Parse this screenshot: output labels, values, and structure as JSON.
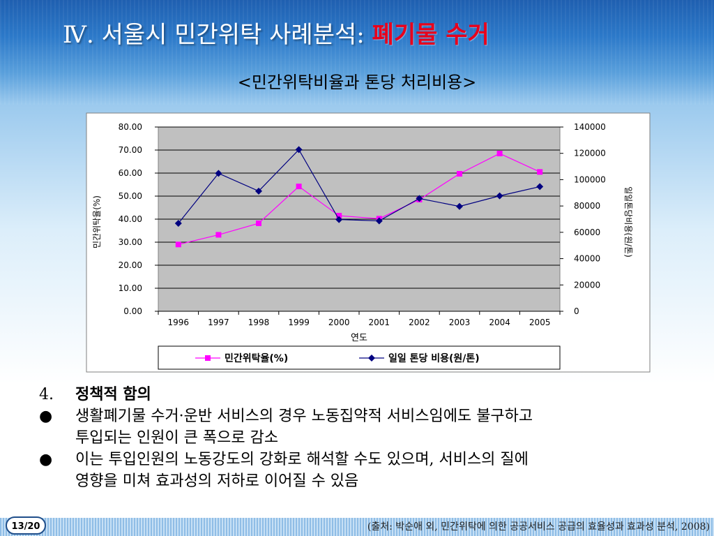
{
  "slide": {
    "title_main": "Ⅳ. 서울시 민간위탁 사례분석: ",
    "title_accent": "폐기물 수거",
    "chart_caption": "<민간위탁비율과 톤당 처리비용>",
    "page": "13/20",
    "source": "(출처: 박순애 외, 민간위탁에 의한 공공서비스 공급의 효율성과 효과성 분석, 2008)",
    "colors": {
      "title": "#ffffff",
      "accent": "#e8001c",
      "banner": "#2c79c9"
    }
  },
  "chart_data": {
    "type": "line",
    "x": [
      "1996",
      "1997",
      "1998",
      "1999",
      "2000",
      "2001",
      "2002",
      "2003",
      "2004",
      "2005"
    ],
    "xlabel": "연도",
    "ylabel_left": "민간위탁율(%)",
    "ylabel_right": "일일톤당비용(원/톤)",
    "ylim_left": [
      0,
      80
    ],
    "ylim_right": [
      0,
      140000
    ],
    "yticks_left": [
      "0.00",
      "10.00",
      "20.00",
      "30.00",
      "40.00",
      "50.00",
      "60.00",
      "70.00",
      "80.00"
    ],
    "yticks_right": [
      "0",
      "20000",
      "40000",
      "60000",
      "80000",
      "100000",
      "120000",
      "140000"
    ],
    "grid": true,
    "legend_position": "bottom",
    "series": [
      {
        "name": "민간위탁율(%)",
        "axis": "left",
        "color": "#ff00ff",
        "marker": "square",
        "values": [
          29,
          33.2,
          38.2,
          54.2,
          41.5,
          40.2,
          48.5,
          59.7,
          68.5,
          60.5
        ]
      },
      {
        "name": "일일 톤당 비용(원/톤)",
        "axis": "right",
        "color": "#000080",
        "marker": "diamond",
        "values": [
          66800,
          104800,
          91300,
          122800,
          69700,
          68700,
          85700,
          79700,
          87700,
          94700
        ]
      }
    ]
  },
  "content": {
    "policy": {
      "number": "4.",
      "title": "정책적 함의"
    },
    "bullets": [
      {
        "symbol": "●",
        "lines": [
          "생활폐기물 수거·운반 서비스의 경우 노동집약적 서비스임에도 불구하고",
          "투입되는 인원이 큰 폭으로 감소"
        ]
      },
      {
        "symbol": "●",
        "lines": [
          "이는 투입인원의 노동강도의 강화로 해석할 수도 있으며, 서비스의 질에",
          "영향을 미쳐 효과성의 저하로 이어질 수 있음"
        ]
      }
    ]
  }
}
